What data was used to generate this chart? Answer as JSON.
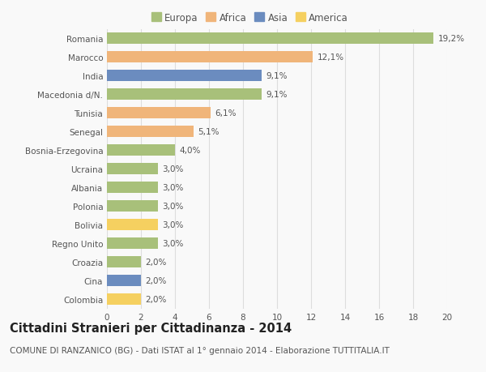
{
  "countries": [
    "Colombia",
    "Cina",
    "Croazia",
    "Regno Unito",
    "Bolivia",
    "Polonia",
    "Albania",
    "Ucraina",
    "Bosnia-Erzegovina",
    "Senegal",
    "Tunisia",
    "Macedonia d/N.",
    "India",
    "Marocco",
    "Romania"
  ],
  "values": [
    2.0,
    2.0,
    2.0,
    3.0,
    3.0,
    3.0,
    3.0,
    3.0,
    4.0,
    5.1,
    6.1,
    9.1,
    9.1,
    12.1,
    19.2
  ],
  "labels": [
    "2,0%",
    "2,0%",
    "2,0%",
    "3,0%",
    "3,0%",
    "3,0%",
    "3,0%",
    "3,0%",
    "4,0%",
    "5,1%",
    "6,1%",
    "9,1%",
    "9,1%",
    "12,1%",
    "19,2%"
  ],
  "continents": [
    "America",
    "Asia",
    "Europa",
    "Europa",
    "America",
    "Europa",
    "Europa",
    "Europa",
    "Europa",
    "Africa",
    "Africa",
    "Europa",
    "Asia",
    "Africa",
    "Europa"
  ],
  "continent_colors": {
    "Europa": "#a8c07a",
    "Africa": "#f0b57a",
    "Asia": "#6b8cbf",
    "America": "#f5d060"
  },
  "legend_order": [
    "Europa",
    "Africa",
    "Asia",
    "America"
  ],
  "title": "Cittadini Stranieri per Cittadinanza - 2014",
  "subtitle": "COMUNE DI RANZANICO (BG) - Dati ISTAT al 1° gennaio 2014 - Elaborazione TUTTITALIA.IT",
  "xlim": [
    0,
    20
  ],
  "xticks": [
    0,
    2,
    4,
    6,
    8,
    10,
    12,
    14,
    16,
    18,
    20
  ],
  "background_color": "#f9f9f9",
  "grid_color": "#dddddd",
  "bar_height": 0.62,
  "title_fontsize": 10.5,
  "subtitle_fontsize": 7.5,
  "label_fontsize": 7.5,
  "tick_fontsize": 7.5,
  "legend_fontsize": 8.5
}
